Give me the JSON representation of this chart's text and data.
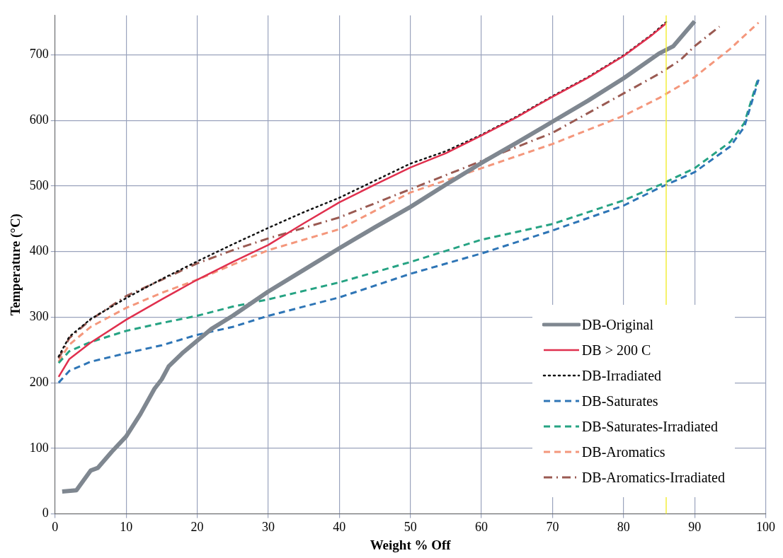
{
  "chart_data": {
    "type": "line",
    "xlabel": "Weight % Off",
    "ylabel": "Temperature (°C)",
    "xlim": [
      0,
      100
    ],
    "ylim": [
      0,
      760
    ],
    "xticks": [
      0,
      10,
      20,
      30,
      40,
      50,
      60,
      70,
      80,
      90,
      100
    ],
    "yticks": [
      0,
      100,
      200,
      300,
      400,
      500,
      600,
      700
    ],
    "grid": true,
    "legend": "bottom right",
    "marker": "none",
    "ref_lines": [
      {
        "axis": "x",
        "value": 86,
        "color": "#f2ee3c"
      }
    ],
    "series": [
      {
        "name": "DB-Original",
        "color": "#7f8790",
        "line_style": "solid",
        "x": [
          1,
          3,
          5,
          6,
          8,
          10,
          12,
          14,
          15,
          16,
          18,
          20,
          22,
          25,
          30,
          35,
          40,
          45,
          50,
          55,
          60,
          65,
          70,
          75,
          80,
          85,
          87,
          90
        ],
        "values": [
          34,
          36,
          66,
          70,
          95,
          118,
          152,
          191,
          205,
          225,
          246,
          264,
          282,
          302,
          339,
          372,
          405,
          437,
          468,
          502,
          535,
          566,
          598,
          630,
          664,
          702,
          713,
          751
        ]
      },
      {
        "name": "DB > 200 C",
        "color": "#e0304e",
        "line_style": "solid",
        "x": [
          0.5,
          2,
          5,
          10,
          15,
          20,
          25,
          30,
          35,
          40,
          45,
          50,
          55,
          60,
          65,
          70,
          75,
          80,
          84,
          86
        ],
        "values": [
          209,
          236,
          261,
          296,
          327,
          357,
          384,
          410,
          443,
          475,
          502,
          528,
          550,
          577,
          605,
          636,
          665,
          698,
          730,
          748
        ]
      },
      {
        "name": "DB-Irradiated",
        "color": "#111111",
        "line_style": "dotted",
        "x": [
          0.5,
          2,
          5,
          10,
          15,
          20,
          25,
          30,
          35,
          40,
          45,
          50,
          55,
          60,
          65,
          70,
          75,
          80,
          84,
          86
        ],
        "values": [
          240,
          270,
          297,
          329,
          358,
          385,
          411,
          436,
          460,
          482,
          508,
          534,
          553,
          578,
          606,
          637,
          666,
          699,
          731,
          750
        ]
      },
      {
        "name": "DB-Saturates",
        "color": "#2e75b6",
        "line_style": "dashed",
        "x": [
          0.5,
          2,
          5,
          10,
          15,
          20,
          25,
          30,
          40,
          50,
          60,
          70,
          80,
          85,
          90,
          95,
          97,
          99
        ],
        "values": [
          200,
          218,
          232,
          245,
          257,
          273,
          285,
          302,
          330,
          366,
          397,
          432,
          470,
          497,
          521,
          560,
          590,
          662
        ]
      },
      {
        "name": "DB-Saturates-Irradiated",
        "color": "#26a383",
        "line_style": "dashed",
        "x": [
          0.5,
          2,
          5,
          10,
          15,
          20,
          25,
          30,
          40,
          50,
          60,
          70,
          80,
          85,
          90,
          95,
          97,
          99
        ],
        "values": [
          230,
          248,
          262,
          279,
          291,
          302,
          316,
          327,
          353,
          384,
          418,
          442,
          478,
          501,
          527,
          567,
          596,
          666
        ]
      },
      {
        "name": "DB-Aromatics",
        "color": "#f4977c",
        "line_style": "dashed",
        "x": [
          0.5,
          2,
          5,
          10,
          15,
          20,
          25,
          30,
          40,
          50,
          60,
          70,
          80,
          85,
          90,
          95,
          99
        ],
        "values": [
          232,
          258,
          285,
          314,
          337,
          357,
          380,
          402,
          434,
          490,
          527,
          564,
          607,
          634,
          666,
          709,
          749
        ]
      },
      {
        "name": "DB-Aromatics-Irradiated",
        "color": "#9a5a52",
        "line_style": "dashdot",
        "x": [
          0.5,
          2,
          5,
          10,
          15,
          20,
          25,
          30,
          40,
          50,
          60,
          70,
          80,
          85,
          88,
          90,
          93.5
        ],
        "values": [
          237,
          268,
          296,
          332,
          357,
          382,
          402,
          420,
          452,
          495,
          538,
          581,
          641,
          671,
          692,
          713,
          743
        ]
      }
    ]
  }
}
